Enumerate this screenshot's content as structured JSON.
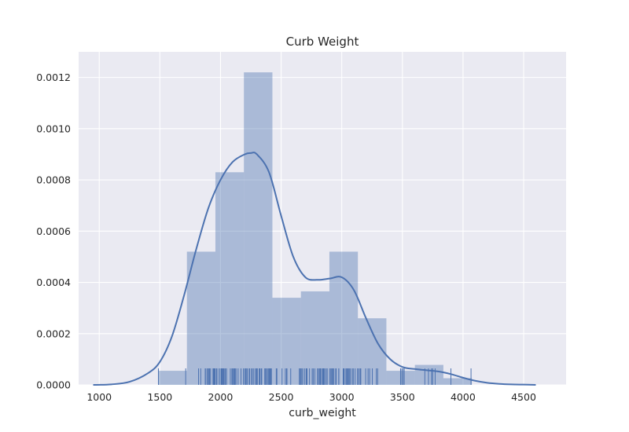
{
  "chart_data": {
    "type": "bar",
    "subtype": "histogram-with-kde-and-rug",
    "title": "Curb Weight",
    "xlabel": "curb_weight",
    "ylabel": "",
    "xlim": [
      830,
      4850
    ],
    "ylim": [
      0,
      0.0013
    ],
    "xticks": [
      1000,
      1500,
      2000,
      2500,
      3000,
      3500,
      4000,
      4500
    ],
    "yticks": [
      0.0,
      0.0002,
      0.0004,
      0.0006,
      0.0008,
      0.001,
      0.0012
    ],
    "xtick_labels": [
      "1000",
      "1500",
      "2000",
      "2500",
      "3000",
      "3500",
      "4000",
      "4500"
    ],
    "ytick_labels": [
      "0.0000",
      "0.0002",
      "0.0004",
      "0.0006",
      "0.0008",
      "0.0010",
      "0.0012"
    ],
    "grid": true,
    "colors": {
      "background": "#EAEAF2",
      "grid": "#ffffff",
      "bar": "#4C72B0",
      "bar_opacity": 0.4,
      "line": "#4C72B0"
    },
    "histogram": {
      "bin_edges": [
        1488,
        1723,
        1958,
        2193,
        2428,
        2663,
        2898,
        3133,
        3368,
        3603,
        3838,
        4073
      ],
      "values": [
        5.5e-05,
        0.00052,
        0.00083,
        0.00122,
        0.00034,
        0.000365,
        0.00052,
        0.00026,
        5.5e-05,
        7.8e-05,
        2.6e-05
      ]
    },
    "kde": {
      "x": [
        950,
        1100,
        1250,
        1400,
        1500,
        1600,
        1700,
        1800,
        1900,
        2000,
        2100,
        2200,
        2250,
        2300,
        2400,
        2500,
        2600,
        2700,
        2800,
        2900,
        3000,
        3100,
        3200,
        3300,
        3400,
        3500,
        3600,
        3700,
        3800,
        3900,
        4000,
        4100,
        4200,
        4300,
        4400,
        4500,
        4600
      ],
      "y": [
        0.0,
        2e-06,
        1.2e-05,
        4.5e-05,
        9e-05,
        0.00019,
        0.00035,
        0.00053,
        0.00069,
        0.0008,
        0.00087,
        0.0009,
        0.000905,
        0.0009,
        0.00083,
        0.00066,
        0.0005,
        0.00042,
        0.00041,
        0.000415,
        0.00042,
        0.00037,
        0.00026,
        0.00016,
        0.0001,
        7e-05,
        6.2e-05,
        5.7e-05,
        5.2e-05,
        4.2e-05,
        2.8e-05,
        1.6e-05,
        8e-06,
        4e-06,
        2e-06,
        1e-06,
        0.0
      ]
    },
    "rug": [
      1488,
      1713,
      1819,
      1837,
      1874,
      1876,
      1889,
      1890,
      1900,
      1905,
      1909,
      1918,
      1938,
      1940,
      1944,
      1945,
      1950,
      1951,
      1956,
      1967,
      1971,
      1989,
      1990,
      2004,
      2008,
      2010,
      2015,
      2017,
      2024,
      2028,
      2037,
      2040,
      2050,
      2081,
      2094,
      2100,
      2109,
      2113,
      2120,
      2128,
      2145,
      2169,
      2190,
      2191,
      2204,
      2209,
      2212,
      2221,
      2236,
      2240,
      2254,
      2264,
      2275,
      2290,
      2293,
      2300,
      2304,
      2319,
      2324,
      2326,
      2337,
      2340,
      2365,
      2370,
      2380,
      2385,
      2395,
      2403,
      2405,
      2410,
      2414,
      2420,
      2460,
      2465,
      2507,
      2535,
      2545,
      2548,
      2579,
      2650,
      2658,
      2661,
      2670,
      2679,
      2695,
      2707,
      2714,
      2734,
      2756,
      2765,
      2778,
      2800,
      2808,
      2818,
      2824,
      2833,
      2843,
      2847,
      2852,
      2858,
      2870,
      2880,
      2900,
      2910,
      2912,
      2920,
      2926,
      2935,
      2950,
      2952,
      2954,
      2975,
      2976,
      3012,
      3016,
      3020,
      3034,
      3042,
      3045,
      3053,
      3060,
      3062,
      3071,
      3086,
      3095,
      3110,
      3130,
      3139,
      3151,
      3157,
      3197,
      3217,
      3230,
      3252,
      3285,
      3296,
      3485,
      3495,
      3505,
      3515,
      3685,
      3715,
      3740,
      3750,
      3770,
      3900,
      4066
    ]
  }
}
